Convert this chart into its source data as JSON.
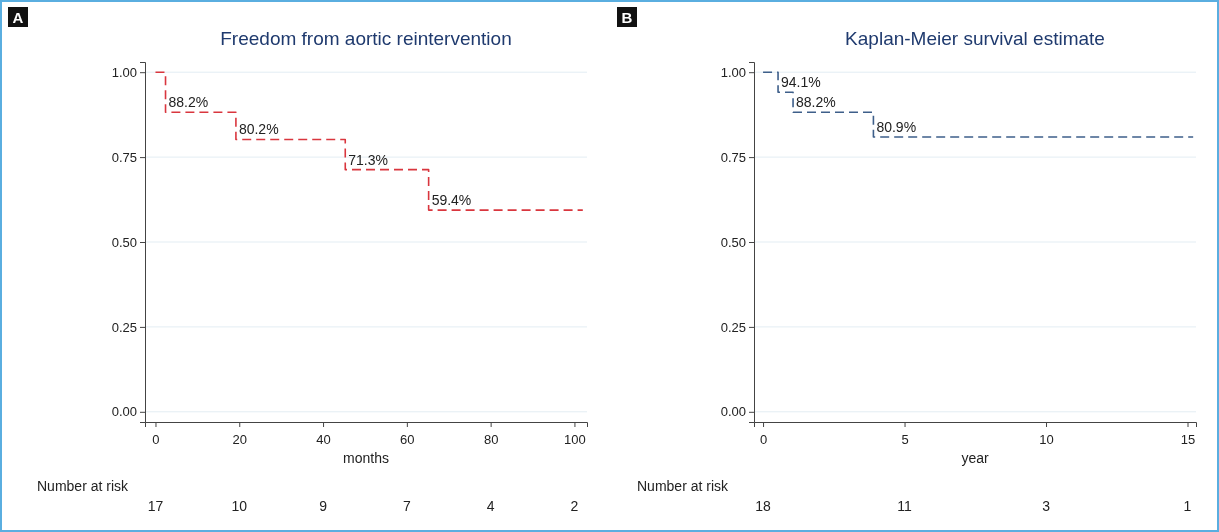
{
  "chart_data": [
    {
      "type": "step",
      "title": "Freedom from aortic reintervention",
      "xlabel": "months",
      "xlim": [
        -2.5,
        103
      ],
      "xticks": [
        0,
        20,
        40,
        60,
        80,
        100
      ],
      "ylim": [
        -0.03,
        1.03
      ],
      "yticks": [
        {
          "value": 0,
          "label": "0.00"
        },
        {
          "value": 0.25,
          "label": "0.25"
        },
        {
          "value": 0.5,
          "label": "0.50"
        },
        {
          "value": 0.75,
          "label": "0.75"
        },
        {
          "value": 1,
          "label": "1.00"
        }
      ],
      "grid": "y",
      "line_style": "dashed",
      "series": [
        {
          "color": "#d9363e",
          "x": [
            0,
            2.4,
            19.2,
            45.3,
            65.2,
            102
          ],
          "values": [
            1,
            0.882,
            0.802,
            0.713,
            0.594,
            0.594
          ],
          "value_labels": [
            null,
            "88.2%",
            "80.2%",
            "71.3%",
            "59.4%",
            null
          ]
        }
      ],
      "annotations": [
        "A",
        "Number at risk",
        "17",
        "10",
        "9",
        "7",
        "4",
        "2"
      ]
    },
    {
      "type": "step",
      "title": "Kaplan-Meier survival estimate",
      "xlabel": "year",
      "xlim": [
        -0.32,
        15.3
      ],
      "xticks": [
        0,
        5,
        10,
        15
      ],
      "ylim": [
        -0.03,
        1.03
      ],
      "yticks": [
        {
          "value": 0,
          "label": "0.00"
        },
        {
          "value": 0.25,
          "label": "0.25"
        },
        {
          "value": 0.5,
          "label": "0.50"
        },
        {
          "value": 0.75,
          "label": "0.75"
        },
        {
          "value": 1,
          "label": "1.00"
        }
      ],
      "grid": "y",
      "line_style": "dashed",
      "series": [
        {
          "color": "#3e5f8a",
          "x": [
            0,
            0.53,
            1.06,
            3.9,
            15.2
          ],
          "values": [
            1,
            0.941,
            0.882,
            0.809,
            0.809
          ],
          "value_labels": [
            null,
            "94.1%",
            "88.2%",
            "80.9%",
            null
          ]
        }
      ],
      "annotations": [
        "B",
        "Number at risk",
        "18",
        "11",
        "3",
        "1"
      ]
    }
  ]
}
